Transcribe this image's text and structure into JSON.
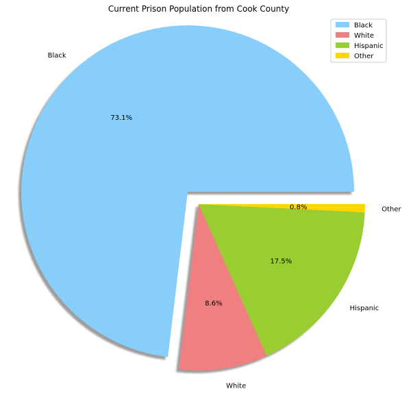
{
  "chart_data": {
    "type": "pie",
    "title": "Current Prison Population from Cook County",
    "categories": [
      "Black",
      "White",
      "Hispanic",
      "Other"
    ],
    "values": [
      73.1,
      8.6,
      17.5,
      0.8
    ],
    "value_labels": [
      "73.1%",
      "8.6%",
      "17.5%",
      "0.8%"
    ],
    "colors": [
      "#87cefa",
      "#f08080",
      "#9acd32",
      "#ffd700"
    ],
    "exploded": [
      "Black"
    ],
    "shadow": true,
    "legend": {
      "position": "top-right",
      "entries": [
        "Black",
        "White",
        "Hispanic",
        "Other"
      ]
    }
  }
}
